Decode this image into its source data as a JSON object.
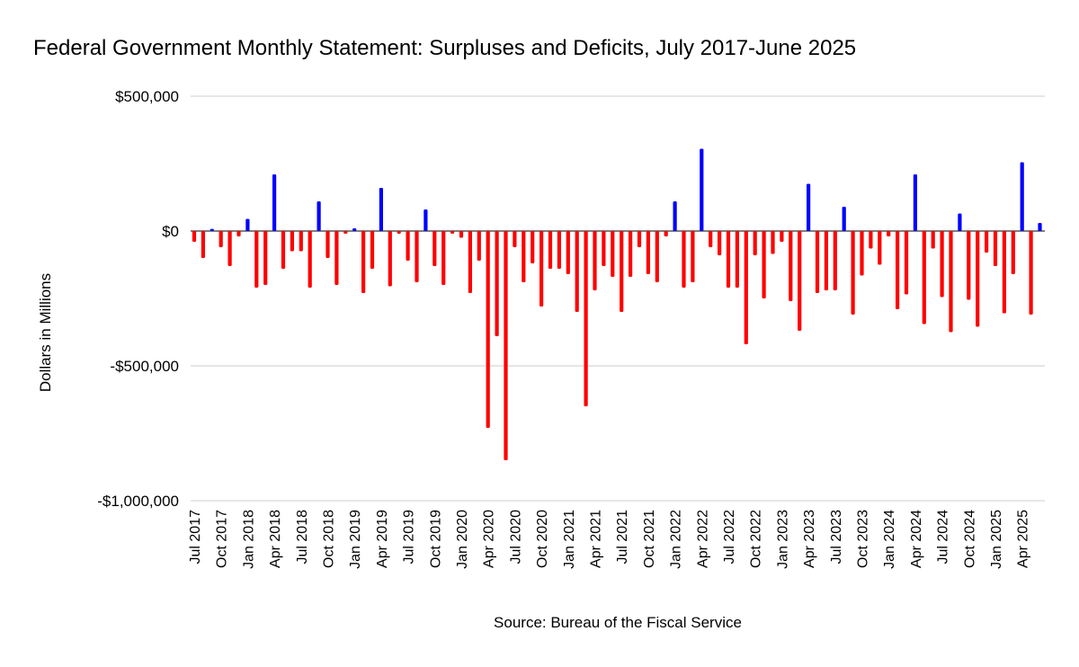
{
  "chart_data": {
    "type": "bar",
    "title": "Federal Government Monthly Statement: Surpluses and Deficits, July 2017-June 2025",
    "ylabel": "Dollars in Millions",
    "xlabel": "",
    "source": "Source: Bureau of the Fiscal Service",
    "ylim": [
      -1000000,
      500000
    ],
    "y_ticks": [
      {
        "value": 500000,
        "label": "$500,000"
      },
      {
        "value": 0,
        "label": "$0"
      },
      {
        "value": -500000,
        "label": "-$500,000"
      },
      {
        "value": -1000000,
        "label": "-$1,000,000"
      }
    ],
    "grid": true,
    "legend": "none",
    "colors": {
      "surplus": "#0000ff",
      "deficit": "#ff0000",
      "grid": "#cccccc",
      "zero_line": "#333333"
    },
    "x_tick_labels": [
      "Jul 2017",
      "Oct 2017",
      "Jan 2018",
      "Apr 2018",
      "Jul 2018",
      "Oct 2018",
      "Jan 2019",
      "Apr 2019",
      "Jul 2019",
      "Oct 2019",
      "Jan 2020",
      "Apr 2020",
      "Jul 2020",
      "Oct 2020",
      "Jan 2021",
      "Apr 2021",
      "Jul 2021",
      "Oct 2021",
      "Jan 2022",
      "Apr 2022",
      "Jul 2022",
      "Oct 2022",
      "Jan 2023",
      "Apr 2023",
      "Jul 2023",
      "Oct 2023",
      "Jan 2024",
      "Apr 2024",
      "Jul 2024",
      "Oct 2024",
      "Jan 2025",
      "Apr 2025"
    ],
    "tick_every": 3,
    "start_month": "Jul 2017",
    "values": [
      -40000,
      -100000,
      8000,
      -60000,
      -130000,
      -20000,
      45000,
      -210000,
      -200000,
      210000,
      -140000,
      -75000,
      -75000,
      -210000,
      110000,
      -100000,
      -200000,
      -10000,
      10000,
      -230000,
      -140000,
      160000,
      -205000,
      -10000,
      -110000,
      -190000,
      80000,
      -130000,
      -200000,
      -10000,
      -25000,
      -230000,
      -110000,
      -730000,
      -390000,
      -850000,
      -60000,
      -190000,
      -120000,
      -280000,
      -140000,
      -140000,
      -160000,
      -300000,
      -650000,
      -220000,
      -130000,
      -170000,
      -300000,
      -170000,
      -60000,
      -160000,
      -190000,
      -20000,
      110000,
      -210000,
      -190000,
      305000,
      -60000,
      -90000,
      -210000,
      -210000,
      -420000,
      -90000,
      -250000,
      -85000,
      -40000,
      -260000,
      -370000,
      175000,
      -230000,
      -220000,
      -220000,
      90000,
      -310000,
      -165000,
      -65000,
      -125000,
      -20000,
      -290000,
      -235000,
      210000,
      -345000,
      -65000,
      -245000,
      -375000,
      65000,
      -255000,
      -355000,
      -80000,
      -130000,
      -305000,
      -160000,
      255000,
      -310000,
      30000
    ]
  }
}
